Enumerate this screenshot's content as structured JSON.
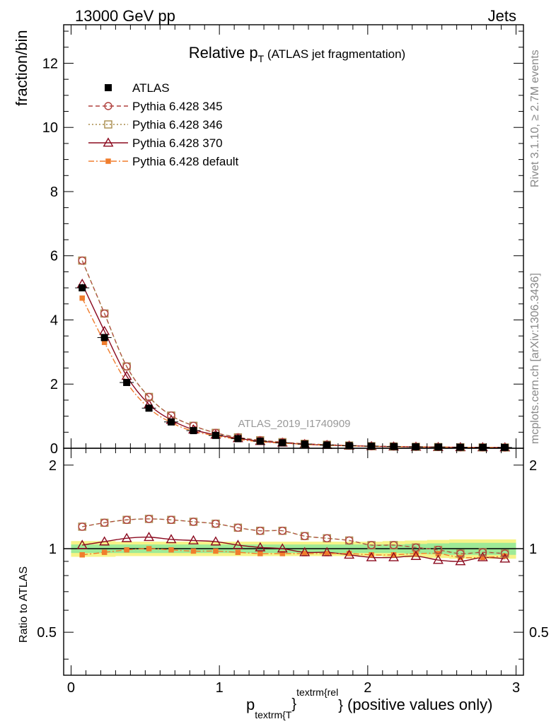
{
  "header": {
    "left": "13000 GeV pp",
    "right": "Jets"
  },
  "side_labels": {
    "rivet": "Rivet 3.1.10, ≥ 2.7M events",
    "mcplots": "mcplots.cern.ch [arXiv:1306.3436]"
  },
  "chart_data": [
    {
      "type": "line",
      "panel": "main",
      "title_main": "Relative p",
      "title_sub": "T",
      "title_rest": " (ATLAS jet fragmentation)",
      "ylabel": "fraction/bin",
      "analysis_label": "ATLAS_2019_I1740909",
      "xlim": [
        -0.05,
        3.05
      ],
      "ylim": [
        0,
        13.2
      ],
      "yticks": [
        0,
        2,
        4,
        6,
        8,
        10,
        12
      ],
      "ytick_labels": [
        "0",
        "2",
        "4",
        "6",
        "8",
        "10",
        "12"
      ],
      "x": [
        0.075,
        0.225,
        0.375,
        0.525,
        0.675,
        0.825,
        0.975,
        1.125,
        1.275,
        1.425,
        1.575,
        1.725,
        1.875,
        2.025,
        2.175,
        2.325,
        2.475,
        2.625,
        2.775,
        2.925
      ],
      "legend_placement": "top-left",
      "series": [
        {
          "name": "ATLAS",
          "color": "#000000",
          "marker": "filled-square",
          "line": "none",
          "values": [
            5.0,
            3.45,
            2.05,
            1.25,
            0.82,
            0.55,
            0.4,
            0.3,
            0.22,
            0.17,
            0.13,
            0.1,
            0.08,
            0.065,
            0.055,
            0.045,
            0.038,
            0.032,
            0.028,
            0.025
          ]
        },
        {
          "name": "Pythia 6.428 345",
          "color": "#b0413e",
          "marker": "open-circle",
          "line": "dashed",
          "values": [
            5.85,
            4.2,
            2.55,
            1.6,
            1.02,
            0.7,
            0.48,
            0.34,
            0.25,
            0.19,
            0.14,
            0.11,
            0.085,
            0.065,
            0.055,
            0.045,
            0.038,
            0.03,
            0.027,
            0.024
          ]
        },
        {
          "name": "Pythia 6.428 346",
          "color": "#a88b4c",
          "marker": "open-square",
          "line": "dotted",
          "values": [
            5.85,
            4.2,
            2.55,
            1.6,
            1.02,
            0.7,
            0.48,
            0.34,
            0.25,
            0.19,
            0.14,
            0.11,
            0.085,
            0.065,
            0.055,
            0.045,
            0.038,
            0.03,
            0.027,
            0.024
          ]
        },
        {
          "name": "Pythia 6.428 370",
          "color": "#8b0a1f",
          "marker": "open-triangle",
          "line": "solid",
          "values": [
            5.12,
            3.65,
            2.25,
            1.37,
            0.88,
            0.58,
            0.42,
            0.31,
            0.22,
            0.17,
            0.125,
            0.097,
            0.077,
            0.06,
            0.05,
            0.042,
            0.034,
            0.029,
            0.026,
            0.023
          ]
        },
        {
          "name": "Pythia 6.428 default",
          "color": "#f07d2d",
          "marker": "filled-small-square",
          "line": "dashdot",
          "values": [
            4.68,
            3.3,
            2.05,
            1.25,
            0.8,
            0.53,
            0.39,
            0.28,
            0.2,
            0.16,
            0.12,
            0.093,
            0.075,
            0.06,
            0.05,
            0.043,
            0.036,
            0.03,
            0.026,
            0.023
          ]
        }
      ]
    },
    {
      "type": "line",
      "panel": "ratio",
      "ylabel": "Ratio to ATLAS",
      "xlabel_main": "p",
      "xlabel_sub": "textrm{T",
      "xlabel_sup": "textrm{rel",
      "xlabel_close": "}",
      "xlabel_rest": " (positive values only)",
      "xlim": [
        -0.05,
        3.05
      ],
      "ylim_log": [
        0.35,
        2.3
      ],
      "yticks": [
        0.5,
        1,
        2
      ],
      "ytick_labels": [
        "0.5",
        "1",
        "2"
      ],
      "xticks": [
        0,
        1,
        2,
        3
      ],
      "xtick_labels": [
        "0",
        "1",
        "2",
        "3"
      ],
      "x": [
        0.075,
        0.225,
        0.375,
        0.525,
        0.675,
        0.825,
        0.975,
        1.125,
        1.275,
        1.425,
        1.575,
        1.725,
        1.875,
        2.025,
        2.175,
        2.325,
        2.475,
        2.625,
        2.775,
        2.925
      ],
      "band_stat": [
        0.035,
        0.035,
        0.035,
        0.035,
        0.035,
        0.035,
        0.035,
        0.035,
        0.035,
        0.035,
        0.035,
        0.035,
        0.035,
        0.035,
        0.035,
        0.04,
        0.045,
        0.05,
        0.05,
        0.05
      ],
      "band_total": [
        0.065,
        0.065,
        0.06,
        0.06,
        0.06,
        0.06,
        0.06,
        0.06,
        0.06,
        0.06,
        0.06,
        0.06,
        0.06,
        0.06,
        0.065,
        0.07,
        0.075,
        0.08,
        0.08,
        0.08
      ],
      "series": [
        {
          "name": "Pythia 6.428 345",
          "color": "#b0413e",
          "marker": "open-circle",
          "line": "dashed",
          "values": [
            1.2,
            1.24,
            1.27,
            1.28,
            1.27,
            1.25,
            1.23,
            1.19,
            1.16,
            1.16,
            1.11,
            1.09,
            1.07,
            1.03,
            1.03,
            1.01,
            0.99,
            0.96,
            0.97,
            0.96
          ]
        },
        {
          "name": "Pythia 6.428 346",
          "color": "#a88b4c",
          "marker": "open-square",
          "line": "dotted",
          "values": [
            1.2,
            1.24,
            1.27,
            1.28,
            1.27,
            1.25,
            1.23,
            1.19,
            1.16,
            1.16,
            1.11,
            1.09,
            1.07,
            1.03,
            1.03,
            1.01,
            0.99,
            0.96,
            0.97,
            0.96
          ]
        },
        {
          "name": "Pythia 6.428 370",
          "color": "#8b0a1f",
          "marker": "open-triangle",
          "line": "solid",
          "values": [
            1.03,
            1.06,
            1.09,
            1.1,
            1.08,
            1.07,
            1.06,
            1.03,
            1.01,
            1.0,
            0.97,
            0.97,
            0.95,
            0.93,
            0.93,
            0.94,
            0.91,
            0.9,
            0.93,
            0.92
          ]
        },
        {
          "name": "Pythia 6.428 default",
          "color": "#f07d2d",
          "marker": "filled-small-square",
          "line": "dashdot",
          "values": [
            0.95,
            0.97,
            0.99,
            1.0,
            0.99,
            0.98,
            0.98,
            0.97,
            0.96,
            0.96,
            0.96,
            0.96,
            0.96,
            0.95,
            0.95,
            0.96,
            0.96,
            0.93,
            0.93,
            0.94
          ]
        }
      ]
    }
  ]
}
